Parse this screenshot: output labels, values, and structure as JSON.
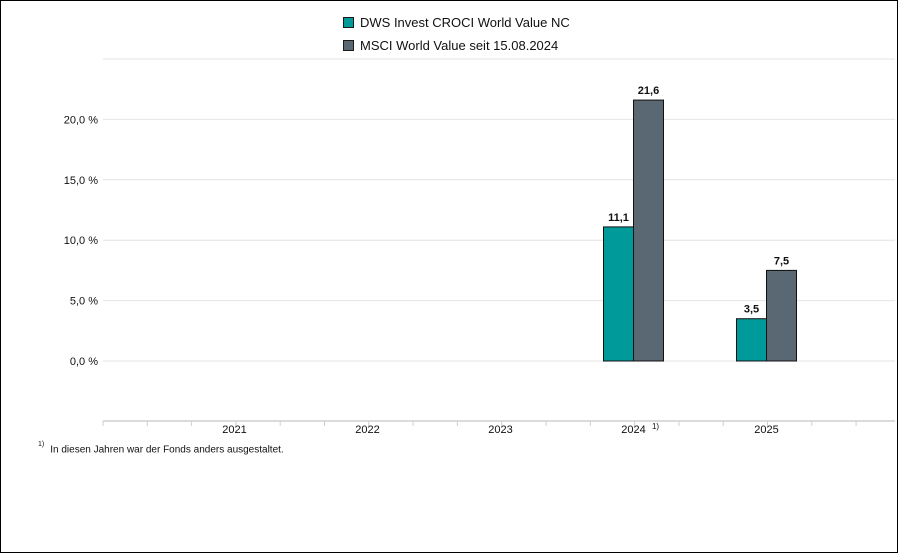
{
  "chart_data": {
    "type": "bar",
    "categories": [
      "2021",
      "2022",
      "2023",
      "2024",
      "2025"
    ],
    "category_notes": [
      "",
      "",
      "",
      "1)",
      ""
    ],
    "series": [
      {
        "name": "DWS Invest CROCI World Value NC",
        "color": "#009a9a",
        "values": [
          null,
          null,
          null,
          11.1,
          3.5
        ],
        "labels": [
          "",
          "",
          "",
          "11,1",
          "3,5"
        ]
      },
      {
        "name": "MSCI World Value seit 15.08.2024",
        "color": "#5a6873",
        "values": [
          null,
          null,
          null,
          21.6,
          7.5
        ],
        "labels": [
          "",
          "",
          "",
          "21,6",
          "7,5"
        ]
      }
    ],
    "yticks": [
      0,
      5,
      10,
      15,
      20
    ],
    "ytick_labels": [
      "0,0 %",
      "5,0 %",
      "10,0 %",
      "15,0 %",
      "20,0 %"
    ],
    "ylim": [
      -5,
      25
    ],
    "grid": true,
    "legend_position": "top-center"
  },
  "footnote": {
    "marker": "1)",
    "text": "In diesen Jahren war der Fonds anders ausgestaltet."
  }
}
